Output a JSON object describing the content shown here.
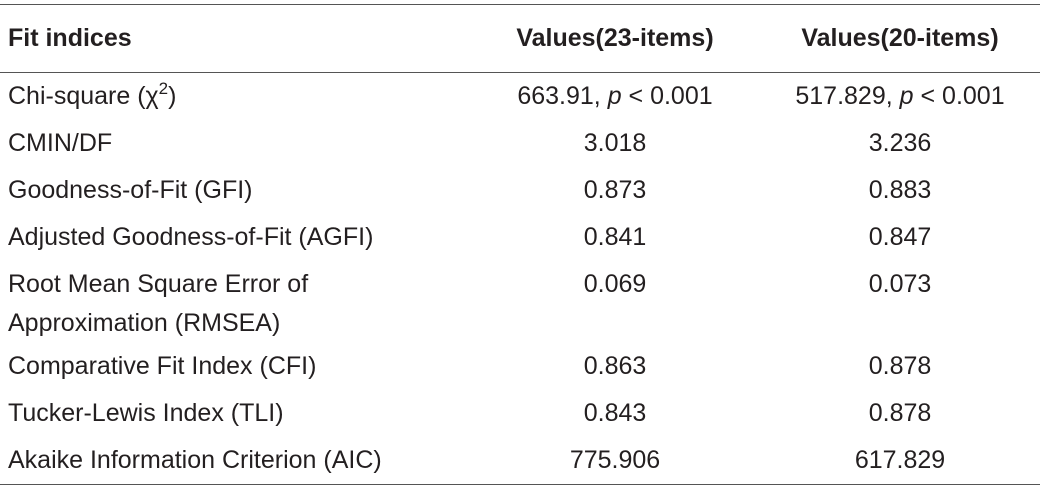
{
  "table": {
    "header": [
      "Fit indices",
      "Values(23-items)",
      "Values(20-items)"
    ],
    "rows": [
      [
        [
          {
            "text": "Chi-square (χ"
          },
          {
            "text": "2",
            "sup": true
          },
          {
            "text": ")"
          }
        ],
        [
          {
            "text": "663.91, "
          },
          {
            "text": "p",
            "italic": true
          },
          {
            "text": " < 0.001"
          }
        ],
        [
          {
            "text": "517.829, "
          },
          {
            "text": "p",
            "italic": true
          },
          {
            "text": " < 0.001"
          }
        ]
      ],
      [
        "CMIN/DF",
        "3.018",
        "3.236"
      ],
      [
        "Goodness-of-Fit (GFI)",
        "0.873",
        "0.883"
      ],
      [
        "Adjusted Goodness-of-Fit (AGFI)",
        "0.841",
        "0.847"
      ],
      [
        [
          {
            "text": "Root Mean Square Error of"
          },
          {
            "text": "Approximation (RMSEA)",
            "newline": true
          }
        ],
        "0.069",
        "0.073"
      ],
      [
        "Comparative Fit Index (CFI)",
        "0.863",
        "0.878"
      ],
      [
        "Tucker-Lewis Index (TLI)",
        "0.843",
        "0.878"
      ],
      [
        "Akaike Information Criterion (AIC)",
        "775.906",
        "617.829"
      ]
    ]
  }
}
